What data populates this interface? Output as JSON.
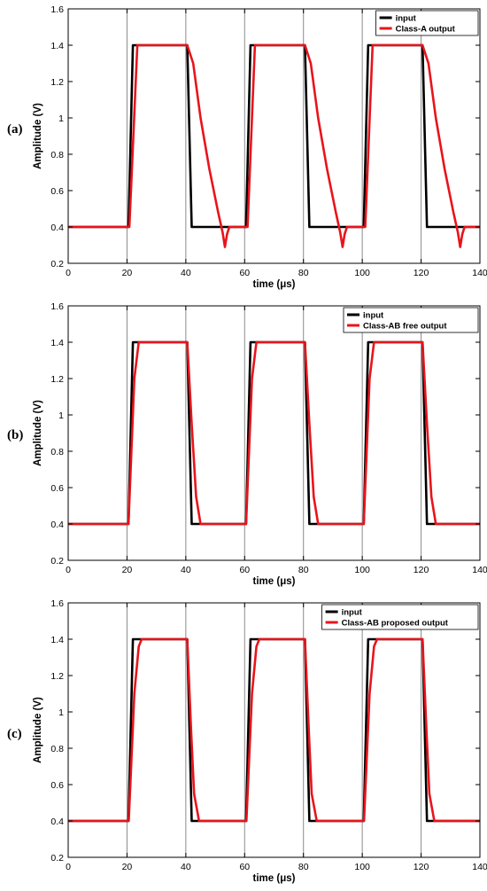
{
  "chart_data": [
    {
      "type": "line",
      "panel_label": "(a)",
      "xlabel": "time (μs)",
      "ylabel": "Amplitude (V)",
      "xlim": [
        0,
        140
      ],
      "ylim": [
        0.2,
        1.6
      ],
      "xticks": [
        "0",
        "20",
        "40",
        "60",
        "80",
        "100",
        "120",
        "140"
      ],
      "yticks": [
        "0.2",
        "0.4",
        "0.6",
        "0.8",
        "1",
        "1.2",
        "1.4",
        "1.6"
      ],
      "grid": "vertical",
      "legend": "top-right",
      "series": [
        {
          "name": "input",
          "color": "#000000",
          "x": [
            0,
            20.5,
            22,
            40.5,
            42,
            60.5,
            62,
            80.5,
            82,
            100.5,
            102,
            120.5,
            122,
            140
          ],
          "y": [
            0.4,
            0.4,
            1.4,
            1.4,
            0.4,
            0.4,
            1.4,
            1.4,
            0.4,
            0.4,
            1.4,
            1.4,
            0.4,
            0.4
          ]
        },
        {
          "name": "Class-A output",
          "color": "#e8141b",
          "x": [
            0,
            20.8,
            23.5,
            40.5,
            42.5,
            45,
            48,
            51,
            52.5,
            53.3,
            54,
            54.8,
            56,
            61,
            63.5,
            80.5,
            82.5,
            85,
            88,
            91,
            92.5,
            93.3,
            94,
            94.8,
            96,
            101,
            103.5,
            120.5,
            122.5,
            125,
            128,
            131,
            132.5,
            133.3,
            134,
            134.8,
            136,
            140
          ],
          "y": [
            0.4,
            0.4,
            1.4,
            1.4,
            1.3,
            1.0,
            0.72,
            0.48,
            0.37,
            0.29,
            0.36,
            0.4,
            0.4,
            0.4,
            1.4,
            1.4,
            1.3,
            1.0,
            0.72,
            0.48,
            0.37,
            0.29,
            0.36,
            0.4,
            0.4,
            0.4,
            1.4,
            1.4,
            1.3,
            1.0,
            0.72,
            0.48,
            0.37,
            0.29,
            0.36,
            0.4,
            0.4,
            0.4
          ]
        }
      ]
    },
    {
      "type": "line",
      "panel_label": "(b)",
      "xlabel": "time (μs)",
      "ylabel": "Amplitude (V)",
      "xlim": [
        0,
        140
      ],
      "ylim": [
        0.2,
        1.6
      ],
      "xticks": [
        "0",
        "20",
        "40",
        "60",
        "80",
        "100",
        "120",
        "140"
      ],
      "yticks": [
        "0.2",
        "0.4",
        "0.6",
        "0.8",
        "1",
        "1.2",
        "1.4",
        "1.6"
      ],
      "grid": "vertical",
      "legend": "top-right",
      "series": [
        {
          "name": "input",
          "color": "#000000",
          "x": [
            0,
            20.5,
            22,
            40.5,
            42,
            60.5,
            62,
            80.5,
            82,
            100.5,
            102,
            120.5,
            122,
            140
          ],
          "y": [
            0.4,
            0.4,
            1.4,
            1.4,
            0.4,
            0.4,
            1.4,
            1.4,
            0.4,
            0.4,
            1.4,
            1.4,
            0.4,
            0.4
          ]
        },
        {
          "name": "Class-AB free output",
          "color": "#e8141b",
          "x": [
            0,
            20.5,
            22.5,
            24,
            40.5,
            42,
            43.5,
            45,
            60.5,
            62.5,
            64,
            80.5,
            82,
            83.5,
            85,
            100.5,
            102.5,
            104,
            120.5,
            122,
            123.5,
            125,
            140
          ],
          "y": [
            0.4,
            0.4,
            1.2,
            1.4,
            1.4,
            0.95,
            0.55,
            0.4,
            0.4,
            1.2,
            1.4,
            1.4,
            0.95,
            0.55,
            0.4,
            0.4,
            1.2,
            1.4,
            1.4,
            0.95,
            0.55,
            0.4,
            0.4
          ]
        }
      ]
    },
    {
      "type": "line",
      "panel_label": "(c)",
      "xlabel": "time (μs)",
      "ylabel": "Amplitude (V)",
      "xlim": [
        0,
        140
      ],
      "ylim": [
        0.2,
        1.6
      ],
      "xticks": [
        "0",
        "20",
        "40",
        "60",
        "80",
        "100",
        "120",
        "140"
      ],
      "yticks": [
        "0.2",
        "0.4",
        "0.6",
        "0.8",
        "1",
        "1.2",
        "1.4",
        "1.6"
      ],
      "grid": "vertical",
      "legend": "top-right",
      "series": [
        {
          "name": "input",
          "color": "#000000",
          "x": [
            0,
            20.5,
            22,
            40.5,
            42,
            60.5,
            62,
            80.5,
            82,
            100.5,
            102,
            120.5,
            122,
            140
          ],
          "y": [
            0.4,
            0.4,
            1.4,
            1.4,
            0.4,
            0.4,
            1.4,
            1.4,
            0.4,
            0.4,
            1.4,
            1.4,
            0.4,
            0.4
          ]
        },
        {
          "name": "Class-AB proposed output",
          "color": "#e8141b",
          "x": [
            0,
            20.6,
            22.5,
            24,
            25,
            40.5,
            41.8,
            42.8,
            44.5,
            60.6,
            62.5,
            64,
            65,
            80.5,
            81.8,
            82.8,
            84.5,
            100.6,
            102.5,
            104,
            105,
            120.5,
            121.8,
            122.8,
            124.5,
            140
          ],
          "y": [
            0.4,
            0.4,
            1.1,
            1.36,
            1.4,
            1.4,
            0.9,
            0.55,
            0.4,
            0.4,
            1.1,
            1.36,
            1.4,
            1.4,
            0.9,
            0.55,
            0.4,
            0.4,
            1.1,
            1.36,
            1.4,
            1.4,
            0.9,
            0.55,
            0.4,
            0.4
          ]
        }
      ]
    }
  ]
}
